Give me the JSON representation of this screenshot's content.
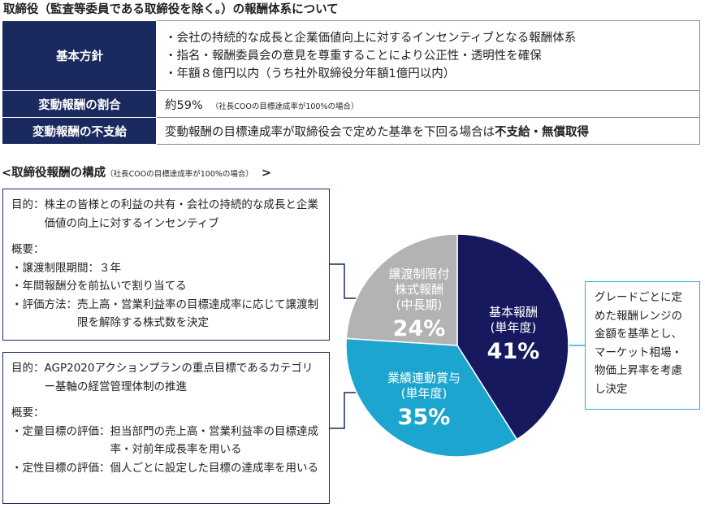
{
  "title": "取締役（監査等委員である取締役を除く。）の報酬体系について",
  "policy": {
    "rows": [
      {
        "label": "基本方針",
        "lines": [
          "・会社の持続的な成長と企業価値向上に対するインセンティブとなる報酬体系",
          "・指名・報酬委員会の意見を尊重することにより公正性・透明性を確保",
          "・年額８億円以内（うち社外取締役分年額1億円以内）"
        ]
      },
      {
        "label": "変動報酬の割合",
        "value": "約59%",
        "note": "（社長COOの目標達成率が100%の場合）"
      },
      {
        "label": "変動報酬の不支給",
        "value": "変動報酬の目標達成率が取締役会で定めた基準を下回る場合は",
        "value_bold": "不支給・無償取得"
      }
    ]
  },
  "composition": {
    "title": "<取締役報酬の構成",
    "note": "（社長COOの目標達成率が100%の場合）",
    "close": ">"
  },
  "box_stock": {
    "purpose_key": "目的：",
    "purpose": "株主の皆様との利益の共有・会社の持続的な成長と企業価値の向上に対するインセンティブ",
    "overview_label": "概要：",
    "items": [
      {
        "key": "・譲渡制限期間：",
        "text": "３年"
      },
      {
        "key": "・年間報酬分を前払いで割り当てる",
        "text": ""
      },
      {
        "key": "・評価方法：",
        "text": "売上高・営業利益率の目標達成率に応じて譲渡制限を解除する株式数を決定"
      }
    ]
  },
  "box_perf": {
    "purpose_key": "目的：",
    "purpose": "AGP2020アクションプランの重点目標であるカテゴリー基軸の経営管理体制の推進",
    "overview_label": "概要：",
    "items": [
      {
        "key": "・定量目標の評価：",
        "text": "担当部門の売上高・営業利益率の目標達成率・対前年成長率を用いる"
      },
      {
        "key": "・定性目標の評価：",
        "text": "個人ごとに設定した目標の達成率を用いる"
      }
    ]
  },
  "box_base": {
    "lines": [
      "グレードごとに定",
      "めた報酬レンジの",
      "金額を基準とし、",
      "マーケット相場・",
      "物価上昇率を考慮",
      "し決定"
    ]
  },
  "chart_data": {
    "type": "pie",
    "title": "",
    "slices": [
      {
        "label_lines": [
          "基本報酬",
          "(単年度)"
        ],
        "pct_label": "41%",
        "value": 41,
        "color": "#17195e"
      },
      {
        "label_lines": [
          "業績連動賞与",
          "(単年度)"
        ],
        "pct_label": "35%",
        "value": 35,
        "color": "#1ca6cf"
      },
      {
        "label_lines": [
          "譲渡制限付",
          "株式報酬",
          "(中長期)"
        ],
        "pct_label": "24%",
        "value": 24,
        "color": "#b3b3b3"
      }
    ]
  }
}
